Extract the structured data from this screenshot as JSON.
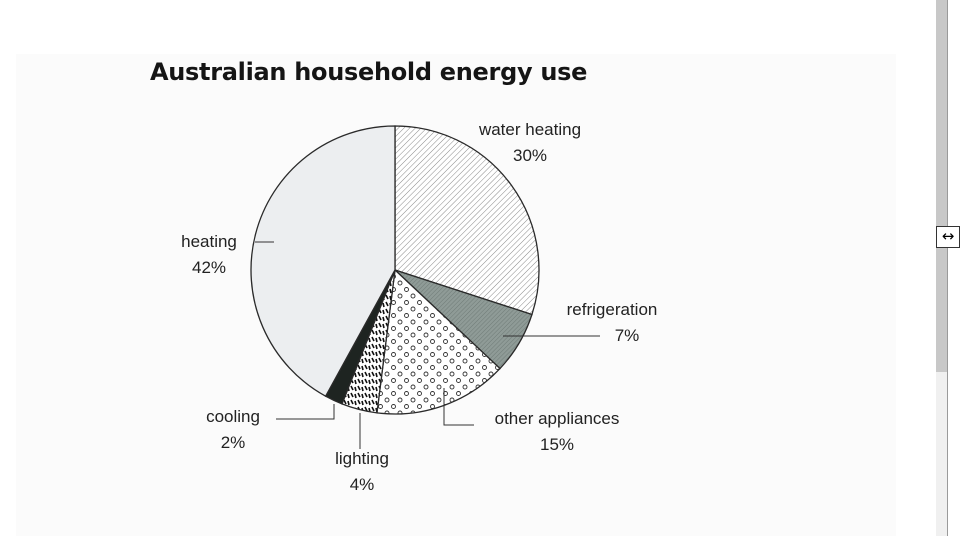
{
  "chart_data": {
    "type": "pie",
    "title": "Australian household energy use",
    "slices": [
      {
        "label": "water heating",
        "value": 30,
        "value_label": "30%",
        "pattern": "diagonal-hatch"
      },
      {
        "label": "refrigeration",
        "value": 7,
        "value_label": "7%",
        "pattern": "dense-gray"
      },
      {
        "label": "other appliances",
        "value": 15,
        "value_label": "15%",
        "pattern": "circles"
      },
      {
        "label": "lighting",
        "value": 4,
        "value_label": "4%",
        "pattern": "dashes"
      },
      {
        "label": "cooling",
        "value": 2,
        "value_label": "2%",
        "pattern": "solid-dark"
      },
      {
        "label": "heating",
        "value": 42,
        "value_label": "42%",
        "pattern": "light-fill"
      }
    ],
    "start": "12 o'clock",
    "direction": "clockwise"
  },
  "colors": {
    "heating": "#eceef0",
    "refrigeration": "#8f9b97",
    "cooling": "#1e2421",
    "outline": "#2a2a2a"
  },
  "ui": {
    "resize_icon": "↔"
  }
}
